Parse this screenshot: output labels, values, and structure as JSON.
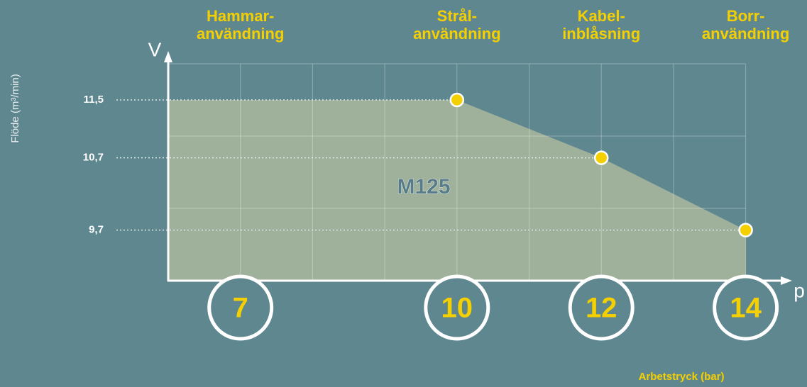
{
  "chart_data": {
    "type": "area",
    "series": [
      {
        "name": "M125",
        "color": "#a0b19b",
        "x": [
          10,
          12,
          14
        ],
        "values": [
          11.5,
          10.7,
          9.7
        ]
      }
    ],
    "marker_color": "#f5d000",
    "xlim": [
      6,
      14
    ],
    "ylim": [
      9,
      12
    ],
    "xticks": [
      7,
      10,
      12,
      14
    ],
    "usage_labels": [
      [
        "Hammar-",
        "användning"
      ],
      [
        "Strål-",
        "användning"
      ],
      [
        "Kabel-",
        "inblåsning"
      ],
      [
        "Borr-",
        "användning"
      ]
    ],
    "yticks": [
      {
        "value": 9.7,
        "label": "9,7"
      },
      {
        "value": 10.7,
        "label": "10,7"
      },
      {
        "value": 11.5,
        "label": "11,5"
      }
    ],
    "xgrid": [
      7,
      8,
      9,
      10,
      11,
      12,
      13,
      14
    ],
    "ygrid": [
      10,
      11,
      12
    ],
    "x_axis_symbol": "p",
    "y_axis_symbol": "V",
    "xlabel": "Arbetstryck (bar)",
    "ylabel": "Flöde (m³/min)"
  }
}
